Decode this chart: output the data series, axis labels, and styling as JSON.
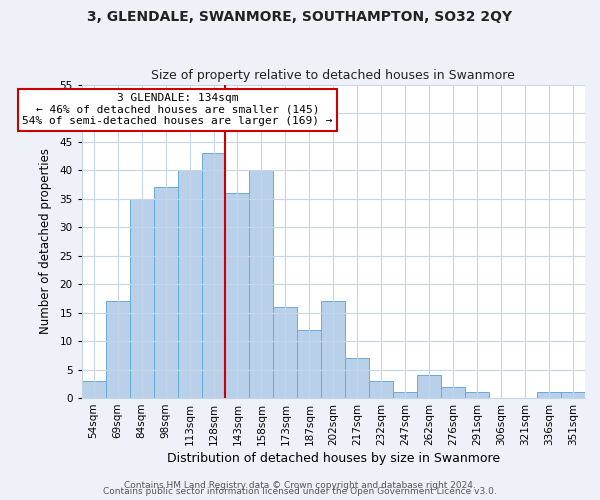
{
  "title": "3, GLENDALE, SWANMORE, SOUTHAMPTON, SO32 2QY",
  "subtitle": "Size of property relative to detached houses in Swanmore",
  "xlabel": "Distribution of detached houses by size in Swanmore",
  "ylabel": "Number of detached properties",
  "bar_labels": [
    "54sqm",
    "69sqm",
    "84sqm",
    "98sqm",
    "113sqm",
    "128sqm",
    "143sqm",
    "158sqm",
    "173sqm",
    "187sqm",
    "202sqm",
    "217sqm",
    "232sqm",
    "247sqm",
    "262sqm",
    "276sqm",
    "291sqm",
    "306sqm",
    "321sqm",
    "336sqm",
    "351sqm"
  ],
  "bar_values": [
    3,
    17,
    35,
    37,
    40,
    43,
    36,
    40,
    16,
    12,
    17,
    7,
    3,
    1,
    4,
    2,
    1,
    0,
    0,
    1,
    1
  ],
  "bar_color": "#b8d0ea",
  "bar_edgecolor": "#6aaad4",
  "vline_x": 5.5,
  "vline_color": "#cc0000",
  "annotation_text": "3 GLENDALE: 134sqm\n← 46% of detached houses are smaller (145)\n54% of semi-detached houses are larger (169) →",
  "annotation_box_edgecolor": "#cc0000",
  "ylim": [
    0,
    55
  ],
  "yticks": [
    0,
    5,
    10,
    15,
    20,
    25,
    30,
    35,
    40,
    45,
    50,
    55
  ],
  "footer1": "Contains HM Land Registry data © Crown copyright and database right 2024.",
  "footer2": "Contains public sector information licensed under the Open Government Licence v3.0.",
  "bg_color": "#eef2f8",
  "plot_bg_color": "#ffffff",
  "grid_color": "#c5d5e8",
  "title_fontsize": 10,
  "subtitle_fontsize": 9,
  "xlabel_fontsize": 9,
  "ylabel_fontsize": 8.5,
  "tick_fontsize": 7.5,
  "footer_fontsize": 6.5
}
